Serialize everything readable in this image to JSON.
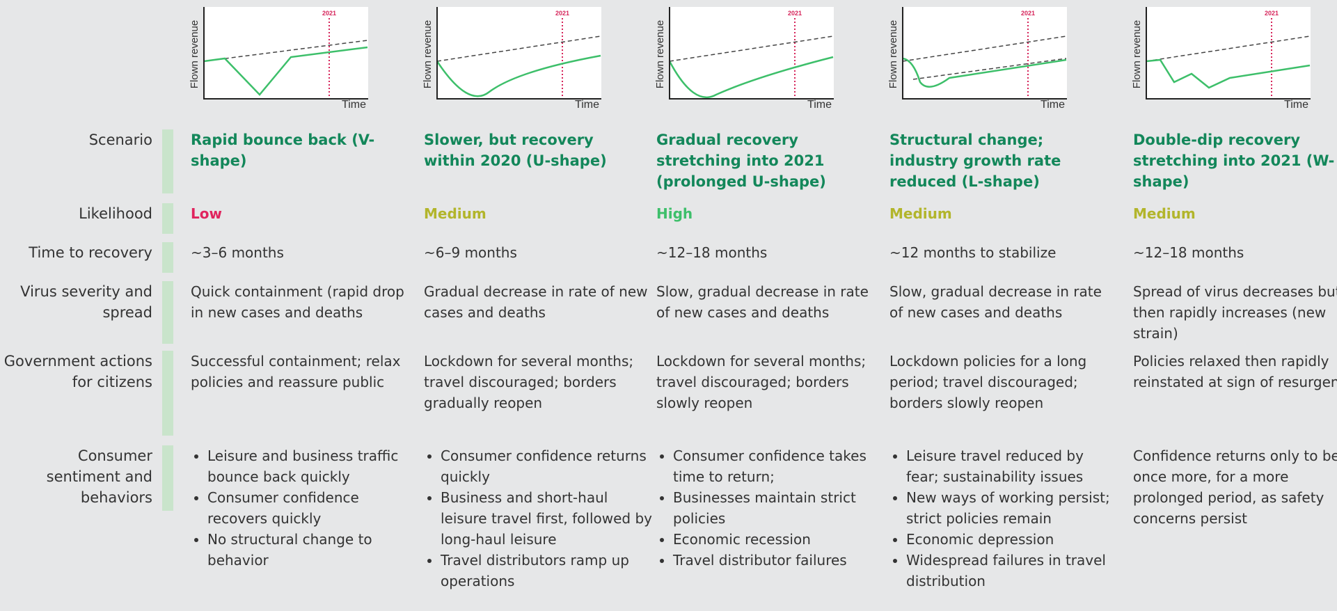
{
  "charts": [
    {
      "y_label": "Flown revenue",
      "x_label": "Time",
      "marker": "2021"
    },
    {
      "y_label": "Flown revenue",
      "x_label": "Time",
      "marker": "2021"
    },
    {
      "y_label": "Flown revenue",
      "x_label": "Time",
      "marker": "2021"
    },
    {
      "y_label": "Flown revenue",
      "x_label": "Time",
      "marker": "2021"
    },
    {
      "y_label": "Flown revenue",
      "x_label": "Time",
      "marker": "2021"
    }
  ],
  "rows": [
    {
      "label": "Scenario",
      "cells": [
        "Rapid bounce back (V-shape)",
        "Slower, but recovery within 2020 (U-shape)",
        "Gradual recovery stretching into 2021 (prolonged U-shape)",
        "Structural change; industry growth rate reduced (L-shape)",
        "Double-dip recovery stretching into 2021 (W-shape)"
      ]
    },
    {
      "label": "Likelihood",
      "cells": [
        "Low",
        "Medium",
        "High",
        "Medium",
        "Medium"
      ]
    },
    {
      "label": "Time to recovery",
      "cells": [
        "~3–6 months",
        "~6–9 months",
        "~12–18 months",
        "~12 months to stabilize",
        "~12–18 months"
      ]
    },
    {
      "label": "Virus severity and spread",
      "cells": [
        "Quick containment (rapid drop in new cases and deaths",
        "Gradual decrease in rate of new cases and deaths",
        "Slow, gradual decrease in rate of new cases and deaths",
        "Slow, gradual decrease in rate of new cases and deaths",
        "Spread of virus decreases but then rapidly increases (new strain)"
      ]
    },
    {
      "label": "Government actions for citizens",
      "cells": [
        "Successful containment; relax policies and reassure public",
        "Lockdown for several months; travel discouraged; borders gradually reopen",
        "Lockdown for several months; travel discouraged; borders slowly reopen",
        "Lockdown policies for a long period; travel discouraged; borders slowly reopen",
        "Policies relaxed then rapidly reinstated at sign of resurgence"
      ]
    },
    {
      "label": "Consumer sentiment and behaviors",
      "cells": [
        [
          "Leisure and business traffic bounce back quickly",
          "Consumer confidence recovers quickly",
          "No structural change to behavior"
        ],
        [
          "Consumer confidence returns quickly",
          "Business and short-haul leisure travel first, followed by long-haul leisure",
          "Travel distributors ramp up operations"
        ],
        [
          "Consumer confidence takes time to return;",
          "Businesses maintain strict policies",
          "Economic recession",
          "Travel distributor failures"
        ],
        [
          "Leisure travel reduced by fear; sustainability issues",
          "New ways of working persist; strict policies remain",
          "Economic depression",
          "Widespread failures in travel distribution"
        ],
        "Confidence returns only to be hit once more, for a more prolonged period, as safety concerns persist"
      ]
    }
  ]
}
